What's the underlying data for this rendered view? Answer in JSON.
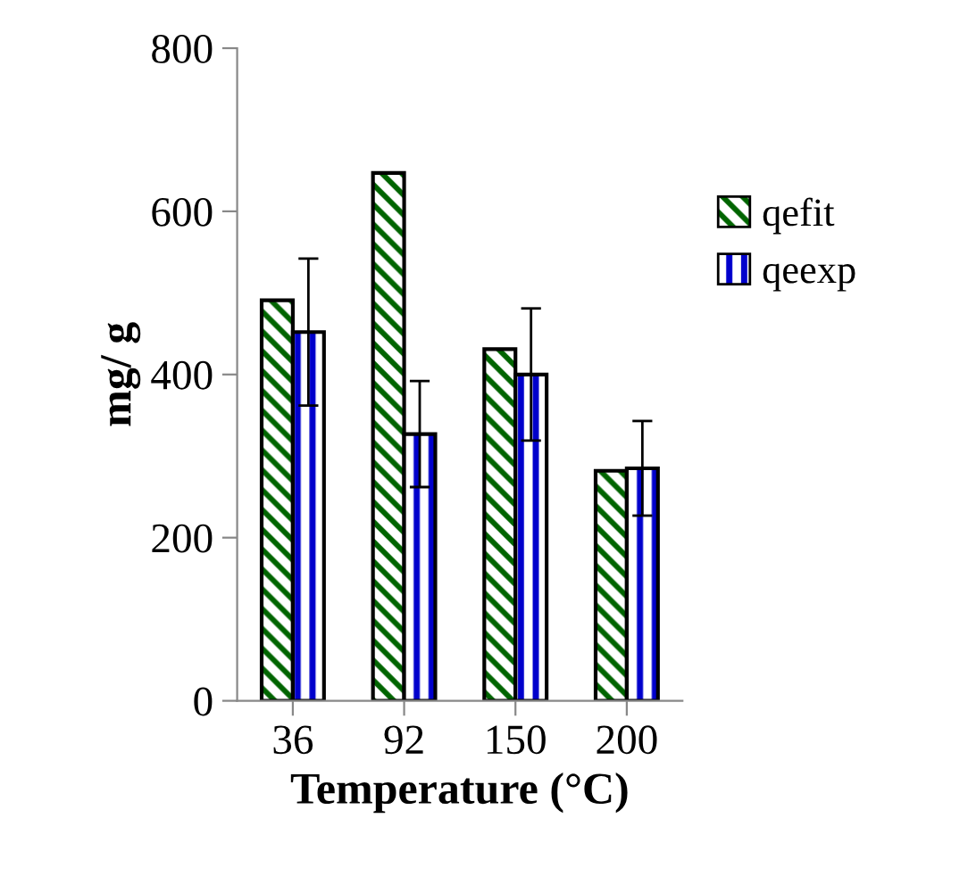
{
  "chart_data": {
    "type": "bar",
    "xlabel": "Temperature (°C)",
    "ylabel": "mg/ g",
    "categories": [
      "36",
      "92",
      "150",
      "200"
    ],
    "series": [
      {
        "name": "qefit",
        "color": "#006400",
        "values": [
          491,
          647,
          431,
          282
        ]
      },
      {
        "name": "qeexp",
        "color": "#0000cc",
        "values": [
          452,
          327,
          400,
          285
        ],
        "errors": [
          90,
          65,
          81,
          58
        ]
      }
    ],
    "ylim": [
      0,
      800
    ],
    "yticks": [
      0,
      200,
      400,
      600,
      800
    ],
    "grid": false,
    "legend": "right"
  }
}
